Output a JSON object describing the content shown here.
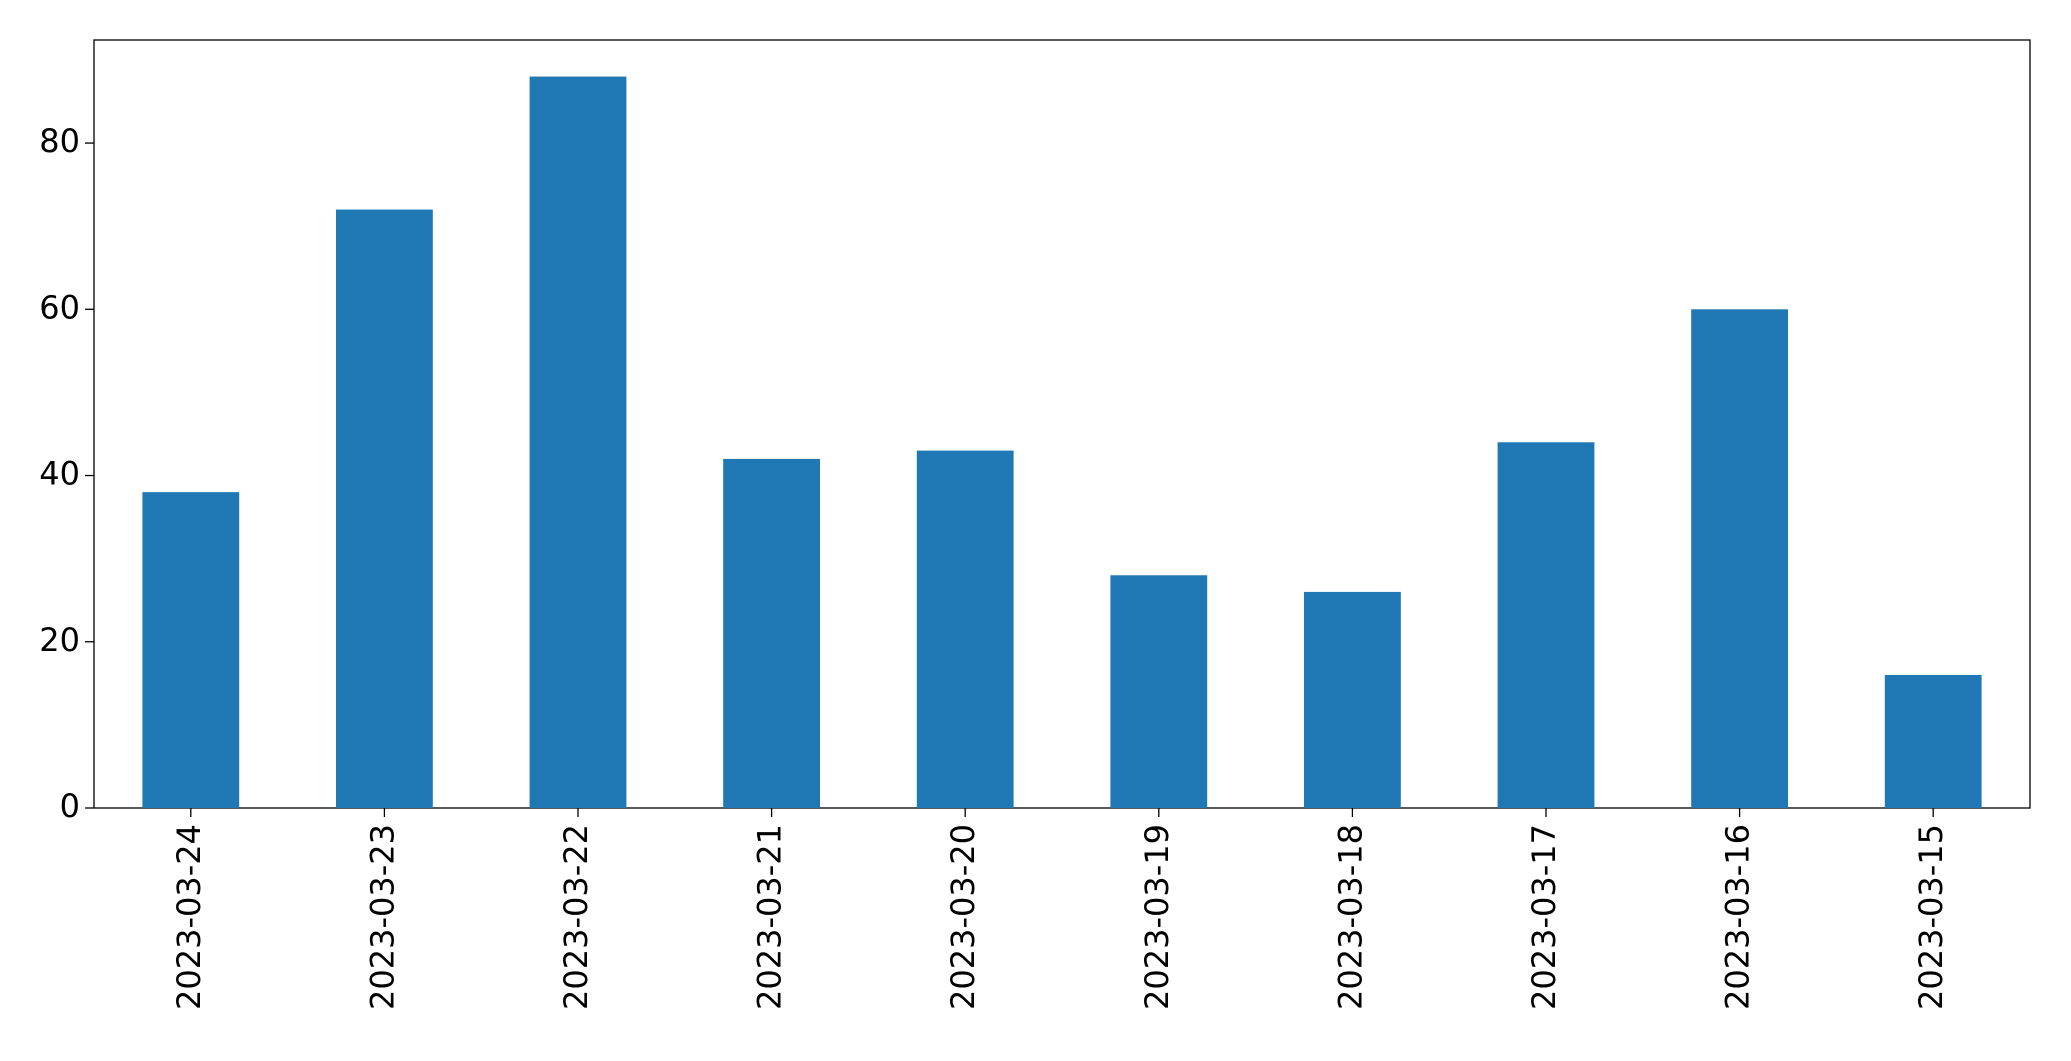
{
  "chart_data": {
    "type": "bar",
    "categories": [
      "2023-03-24",
      "2023-03-23",
      "2023-03-22",
      "2023-03-21",
      "2023-03-20",
      "2023-03-19",
      "2023-03-18",
      "2023-03-17",
      "2023-03-16",
      "2023-03-15"
    ],
    "values": [
      38,
      72,
      88,
      42,
      43,
      28,
      26,
      44,
      60,
      16
    ],
    "color": "#1f77b4",
    "ylim": [
      0,
      92.4
    ],
    "yticks": [
      0,
      20,
      40,
      60,
      80
    ],
    "grid": false
  }
}
